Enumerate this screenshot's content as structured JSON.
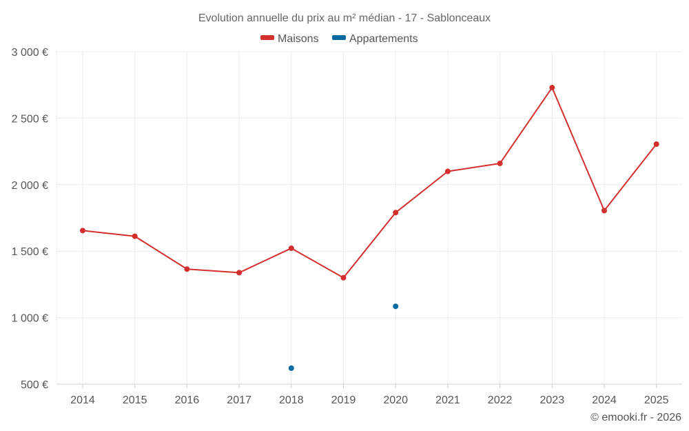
{
  "chart_data": {
    "type": "line",
    "title": "Evolution annuelle du prix au m² médian - 17 - Sablonceaux",
    "categories": [
      "2014",
      "2015",
      "2016",
      "2017",
      "2018",
      "2019",
      "2020",
      "2021",
      "2022",
      "2023",
      "2024",
      "2025"
    ],
    "series": [
      {
        "name": "Maisons",
        "color": "#d32f2f",
        "values": [
          1655,
          1612,
          1365,
          1338,
          1522,
          1300,
          1790,
          2100,
          2160,
          2730,
          1805,
          2305
        ]
      },
      {
        "name": "Appartements",
        "color": "#0b6aa2",
        "values": [
          null,
          null,
          null,
          null,
          620,
          null,
          1085,
          null,
          null,
          null,
          null,
          null
        ]
      }
    ],
    "ylim": [
      500,
      3000
    ],
    "yticks": [
      500,
      1000,
      1500,
      2000,
      2500,
      3000
    ],
    "ytick_labels": [
      "500 €",
      "1 000 €",
      "1 500 €",
      "2 000 €",
      "2 500 €",
      "3 000 €"
    ],
    "xlabel": "",
    "ylabel": "",
    "grid": true,
    "legend_position": "top-center"
  },
  "credit": "© emooki.fr - 2026"
}
